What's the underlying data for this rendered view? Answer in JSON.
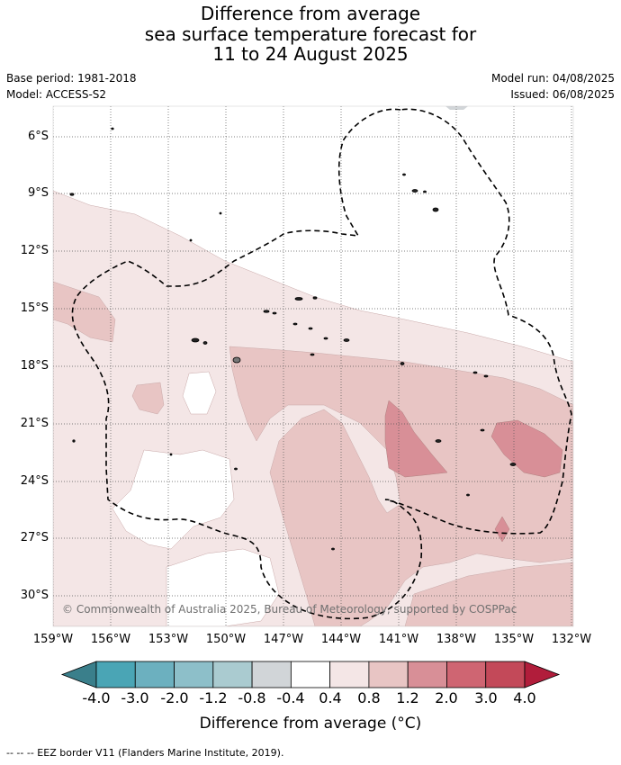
{
  "title": {
    "line1": "Difference from average",
    "line2": "sea surface temperature forecast for",
    "line3": "11 to 24 August 2025"
  },
  "meta": {
    "base_period": "Base period: 1981-2018",
    "model": "Model: ACCESS-S2",
    "model_run": "Model run: 04/08/2025",
    "issued": "Issued: 06/08/2025"
  },
  "map": {
    "lat_labels": [
      "6°S",
      "9°S",
      "12°S",
      "15°S",
      "18°S",
      "21°S",
      "24°S",
      "27°S",
      "30°S"
    ],
    "lon_labels": [
      "159°W",
      "156°W",
      "153°W",
      "150°W",
      "147°W",
      "144°W",
      "141°W",
      "138°W",
      "135°W",
      "132°W"
    ],
    "copyright": "© Commonwealth of Australia 2025, Bureau of Meteorology, supported by COSPPac"
  },
  "colorbar": {
    "ticks": [
      "-4.0",
      "-3.0",
      "-2.0",
      "-1.2",
      "-0.8",
      "-0.4",
      "0.4",
      "0.8",
      "1.2",
      "2.0",
      "3.0",
      "4.0"
    ],
    "colors": [
      "#4aa5b5",
      "#6cb0bf",
      "#8dbfc9",
      "#aacbd0",
      "#d1d5d8",
      "#ffffff",
      "#f4e6e6",
      "#e8c5c4",
      "#d88f97",
      "#cf6572",
      "#c34959"
    ],
    "under_color": "#3a7f8b",
    "over_color": "#b11d3b",
    "title": "Difference from average (°C)"
  },
  "footer": "--  --  -- EEZ border V11 (Flanders Marine Institute, 2019)."
}
